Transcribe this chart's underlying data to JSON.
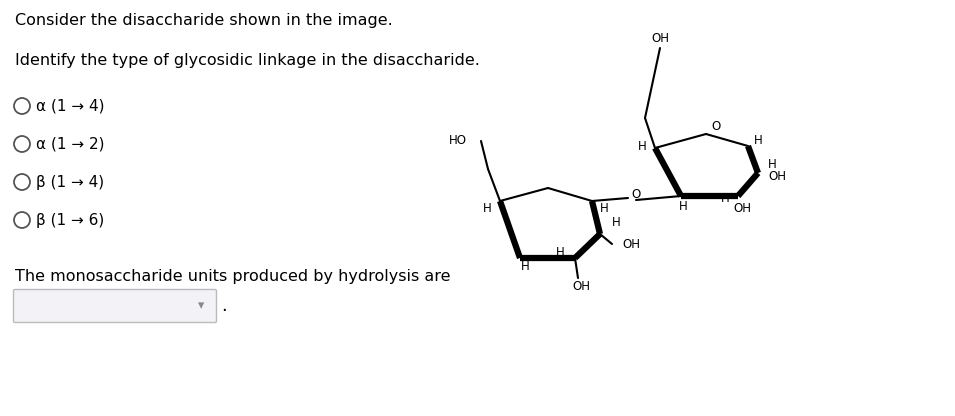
{
  "title1": "Consider the disaccharide shown in the image.",
  "title2": "Identify the type of glycosidic linkage in the disaccharide.",
  "options": [
    "α (1 → 4)",
    "α (1 → 2)",
    "β (1 → 4)",
    "β (1 → 6)"
  ],
  "bottom_label": "The monosaccharide units produced by hydrolysis are",
  "bg_color": "#ffffff",
  "text_color": "#000000",
  "font_size_title": 11.5,
  "font_size_option": 11,
  "font_size_chem": 8.5
}
